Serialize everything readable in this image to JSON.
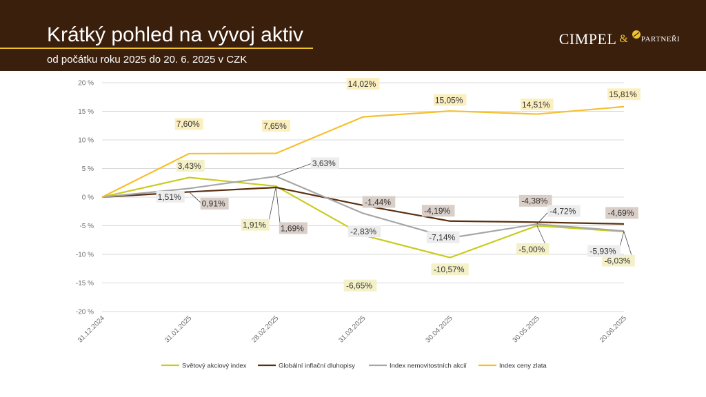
{
  "header": {
    "title": "Krátký pohled na vývoj aktiv",
    "subtitle": "od počátku roku 2025 do 20. 6. 2025 v CZK",
    "logo_main": "CIMPEL",
    "logo_amp": "&",
    "logo_sub": "PARTNEŘI"
  },
  "colors": {
    "header_bg": "#3a1f0d",
    "accent": "#f0c32a"
  },
  "chart_data": {
    "type": "line",
    "categories": [
      "31.12.2024",
      "31.01.2025",
      "28.02.2025",
      "31.03.2025",
      "30.04.2025",
      "30.05.2025",
      "20.06.2025"
    ],
    "ylim": [
      -20,
      20
    ],
    "yticks": [
      20,
      15,
      10,
      5,
      0,
      -5,
      -10,
      -15,
      -20
    ],
    "ytick_labels": [
      "20 %",
      "15 %",
      "10 %",
      "5 %",
      "0 %",
      "-5 %",
      "-10 %",
      "-15 %",
      "-20 %"
    ],
    "grid": true,
    "legend_position": "bottom",
    "series": [
      {
        "name": "Světový akciový index",
        "color": "#c8cc1e",
        "label_bg": "#f4f0c8",
        "values": [
          0,
          3.43,
          1.91,
          -6.65,
          -10.57,
          -5.0,
          -6.03
        ],
        "labels": [
          "",
          "3,43%",
          "1,91%",
          "-6,65%",
          "-10,57%",
          "-5,00%",
          "-6,03%"
        ]
      },
      {
        "name": "Globální inflační dluhopisy",
        "color": "#5a2e0e",
        "label_bg": "#d9cfc8",
        "values": [
          0,
          0.91,
          1.69,
          -1.44,
          -4.19,
          -4.38,
          -4.69
        ],
        "labels": [
          "",
          "0,91%",
          "1,69%",
          "-1,44%",
          "-4,19%",
          "-4,38%",
          "-4,69%"
        ]
      },
      {
        "name": "Index nemovitostních akcií",
        "color": "#a6a6a6",
        "label_bg": "#ededed",
        "values": [
          0,
          1.51,
          3.63,
          -2.83,
          -7.14,
          -4.72,
          -5.93
        ],
        "labels": [
          "",
          "1,51%",
          "3,63%",
          "-2,83%",
          "-7,14%",
          "-4,72%",
          "-5,93%"
        ]
      },
      {
        "name": "Index ceny zlata",
        "color": "#f5c02d",
        "label_bg": "#fbefc0",
        "values": [
          0,
          7.6,
          7.65,
          14.02,
          15.05,
          14.51,
          15.81
        ],
        "labels": [
          "",
          "7,60%",
          "7,65%",
          "14,02%",
          "15,05%",
          "14,51%",
          "15,81%"
        ]
      }
    ]
  }
}
